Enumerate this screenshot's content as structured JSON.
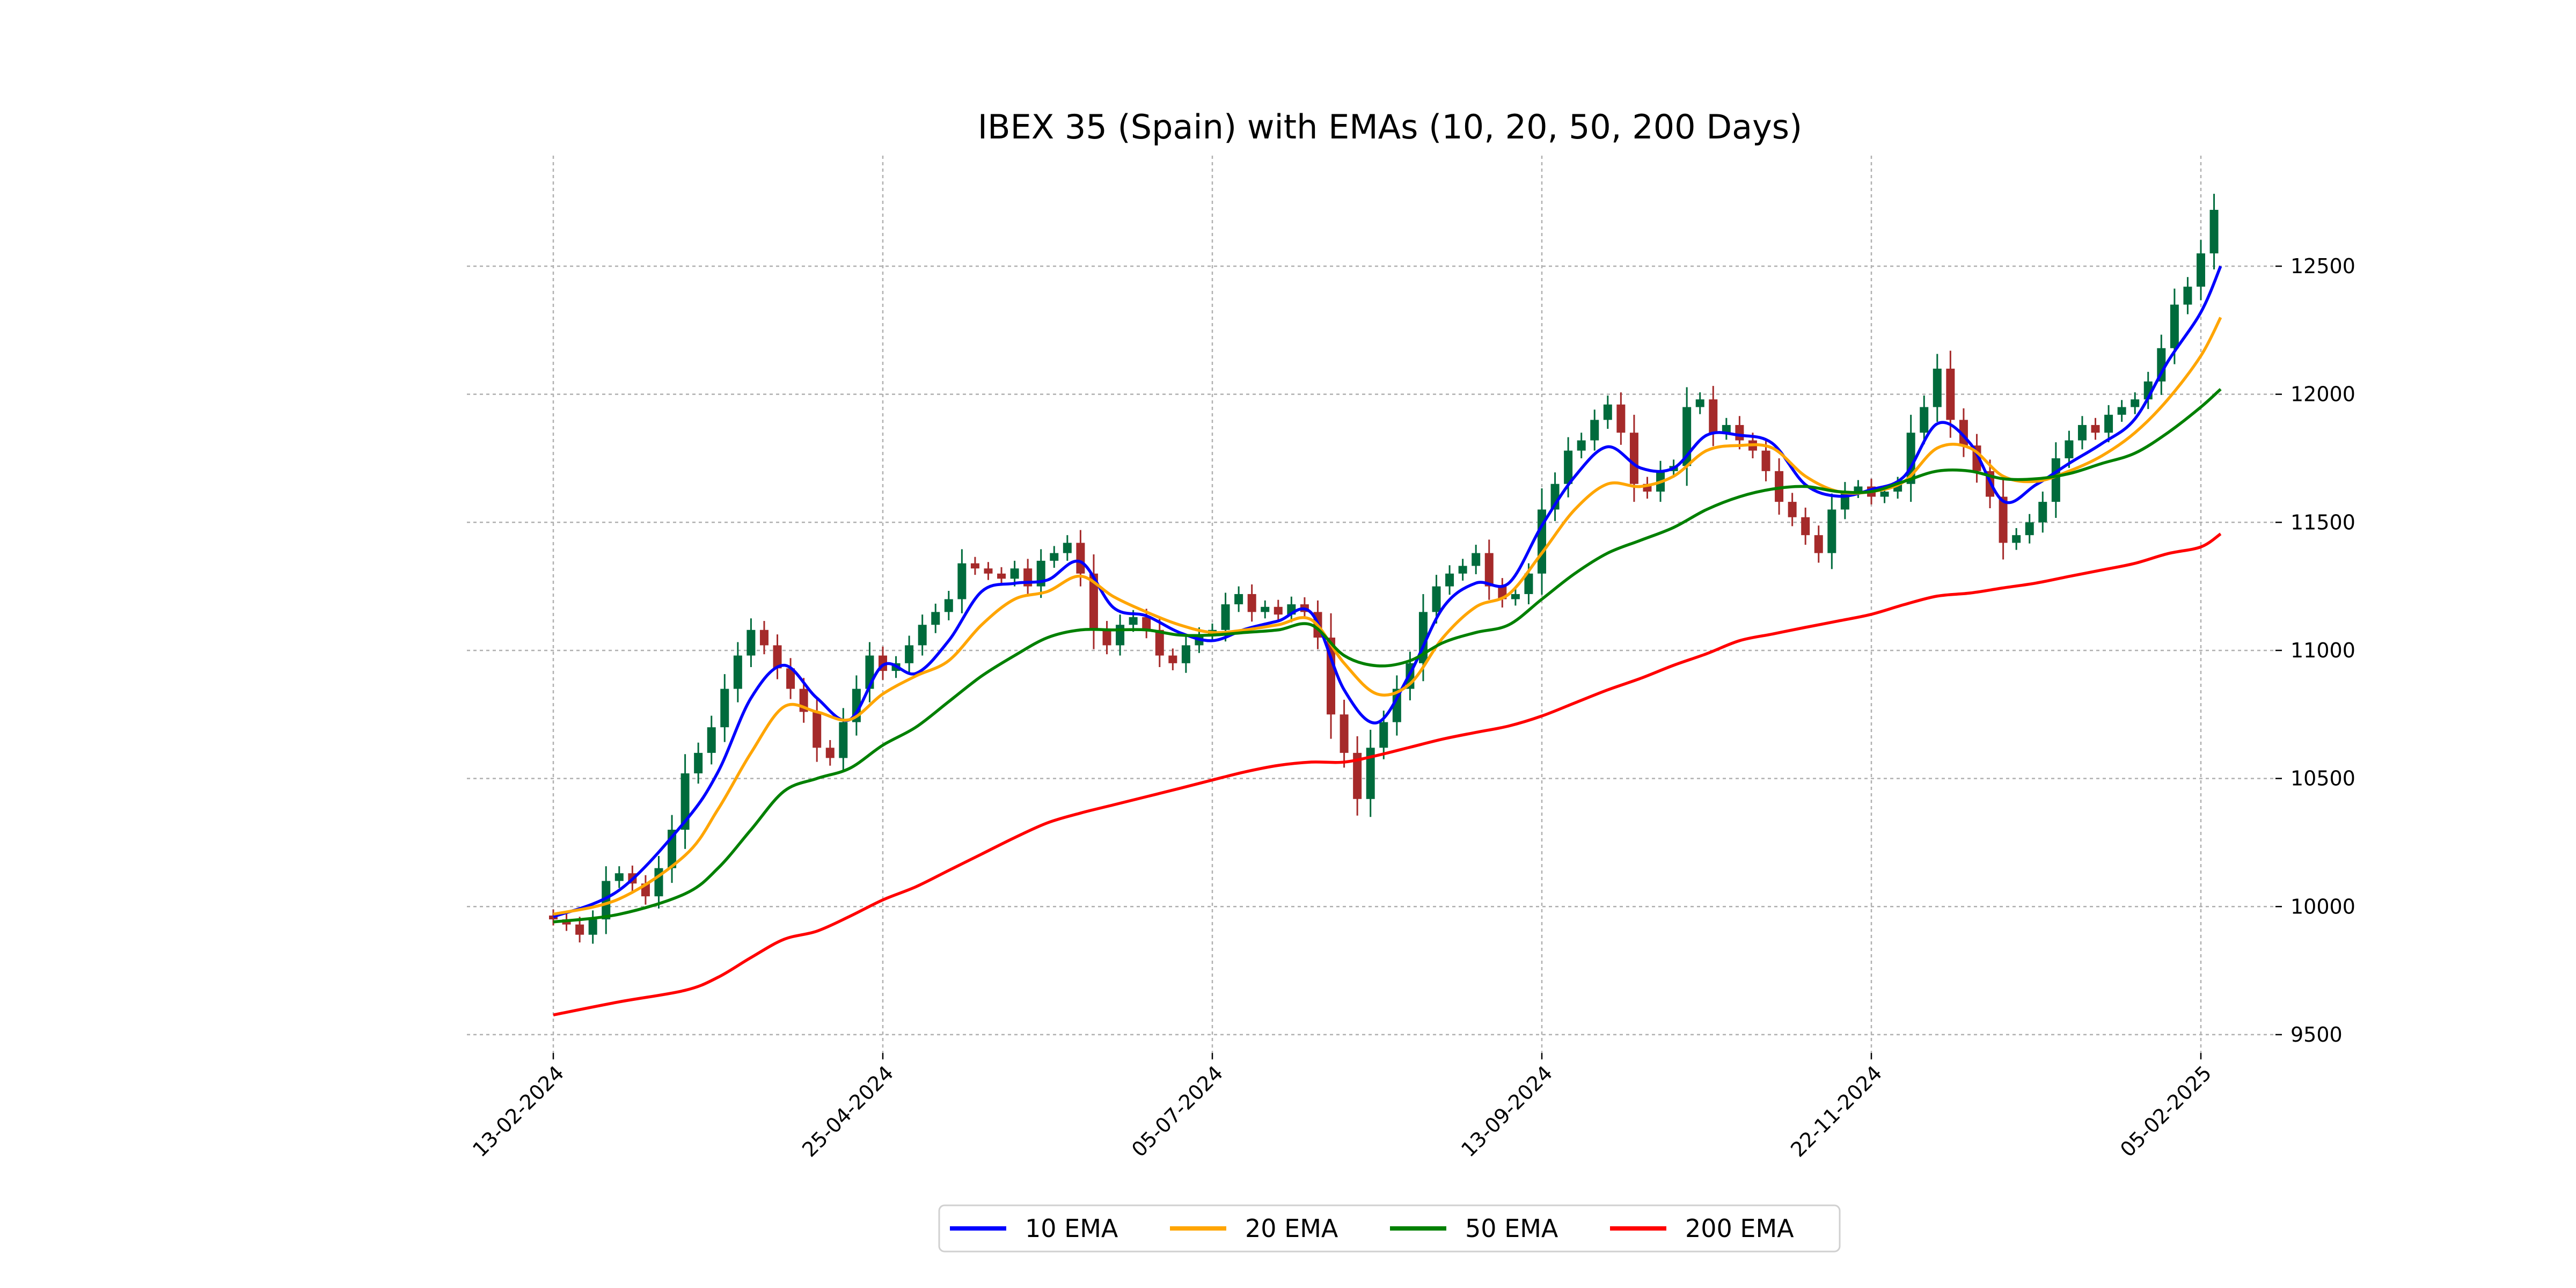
{
  "chart_data": {
    "type": "line",
    "title": "IBEX 35 (Spain) with EMAs (10, 20, 50, 200 Days)",
    "xlabel": "",
    "ylabel": "",
    "ylim": [
      9420,
      12950
    ],
    "xlim_days": [
      -4,
      263
    ],
    "grid": true,
    "legend_placement": "bottom-center",
    "y_ticks": [
      9500,
      10000,
      10500,
      11000,
      11500,
      12000,
      12500
    ],
    "x_ticks": [
      {
        "day": 0,
        "label": "13-02-2024"
      },
      {
        "day": 50,
        "label": "25-04-2024"
      },
      {
        "day": 100,
        "label": "05-07-2024"
      },
      {
        "day": 150,
        "label": "13-09-2024"
      },
      {
        "day": 200,
        "label": "22-11-2024"
      },
      {
        "day": 250,
        "label": "05-02-2025"
      }
    ],
    "candles": {
      "note_step_days": 2,
      "up_color": "#006b3c",
      "down_color": "#a52a2a",
      "close": [
        9950,
        9930,
        9890,
        9950,
        10100,
        10130,
        10090,
        10040,
        10150,
        10300,
        10520,
        10600,
        10700,
        10850,
        10980,
        11080,
        11020,
        10930,
        10850,
        10760,
        10620,
        10580,
        10720,
        10850,
        10980,
        10920,
        10950,
        11020,
        11100,
        11150,
        11200,
        11340,
        11320,
        11300,
        11280,
        11320,
        11250,
        11350,
        11380,
        11420,
        11300,
        11080,
        11020,
        11100,
        11130,
        11080,
        10980,
        10950,
        11020,
        11060,
        11080,
        11180,
        11220,
        11150,
        11170,
        11140,
        11180,
        11150,
        11050,
        10750,
        10600,
        10420,
        10620,
        10720,
        10850,
        10950,
        11150,
        11250,
        11300,
        11330,
        11380,
        11250,
        11200,
        11220,
        11300,
        11550,
        11650,
        11780,
        11820,
        11900,
        11960,
        11850,
        11650,
        11620,
        11700,
        11720,
        11950,
        11980,
        11850,
        11880,
        11820,
        11780,
        11700,
        11580,
        11520,
        11450,
        11380,
        11550,
        11620,
        11640,
        11600,
        11620,
        11650,
        11850,
        11950,
        12100,
        11900,
        11800,
        11700,
        11600,
        11420,
        11450,
        11500,
        11580,
        11750,
        11820,
        11880,
        11850,
        11920,
        11950,
        11980,
        12050,
        12180,
        12350,
        12420,
        12550,
        12720
      ]
    },
    "ema_days": [
      0,
      10,
      20,
      25,
      30,
      35,
      40,
      45,
      50,
      55,
      60,
      65,
      70,
      75,
      80,
      85,
      90,
      95,
      100,
      105,
      110,
      115,
      120,
      125,
      130,
      135,
      140,
      145,
      150,
      155,
      160,
      165,
      170,
      175,
      180,
      185,
      190,
      195,
      200,
      205,
      210,
      215,
      220,
      225,
      230,
      235,
      240,
      245,
      250,
      253
    ],
    "series": [
      {
        "name": "10 EMA",
        "color": "#0000ff",
        "values": [
          9960,
          10064,
          10333,
          10526,
          10814,
          10942,
          10814,
          10730,
          10942,
          10910,
          11038,
          11230,
          11262,
          11275,
          11346,
          11167,
          11135,
          11070,
          11038,
          11083,
          11115,
          11147,
          10846,
          10718,
          10910,
          11167,
          11263,
          11263,
          11487,
          11679,
          11795,
          11712,
          11712,
          11840,
          11840,
          11808,
          11647,
          11602,
          11628,
          11680,
          11885,
          11808,
          11583,
          11647,
          11730,
          11808,
          11904,
          12128,
          12320,
          12500
        ]
      },
      {
        "name": "20 EMA",
        "color": "#ffa500",
        "values": [
          9970,
          10030,
          10200,
          10380,
          10600,
          10780,
          10760,
          10730,
          10830,
          10900,
          10960,
          11100,
          11200,
          11230,
          11290,
          11210,
          11150,
          11100,
          11070,
          11080,
          11100,
          11120,
          10950,
          10830,
          10870,
          11050,
          11170,
          11220,
          11380,
          11550,
          11650,
          11640,
          11680,
          11780,
          11800,
          11790,
          11680,
          11620,
          11620,
          11660,
          11790,
          11790,
          11680,
          11660,
          11700,
          11760,
          11850,
          11980,
          12150,
          12300
        ]
      },
      {
        "name": "50 EMA",
        "color": "#008000",
        "values": [
          9940,
          9970,
          10050,
          10150,
          10300,
          10450,
          10500,
          10540,
          10630,
          10700,
          10800,
          10900,
          10980,
          11050,
          11080,
          11080,
          11080,
          11060,
          11060,
          11070,
          11080,
          11100,
          10980,
          10940,
          10960,
          11030,
          11070,
          11100,
          11200,
          11300,
          11380,
          11430,
          11480,
          11550,
          11600,
          11630,
          11640,
          11620,
          11620,
          11660,
          11700,
          11700,
          11670,
          11670,
          11690,
          11730,
          11770,
          11850,
          11950,
          12020
        ]
      },
      {
        "name": "200 EMA",
        "color": "#ff0000",
        "values": [
          9577,
          9628,
          9673,
          9724,
          9801,
          9872,
          9904,
          9962,
          10026,
          10077,
          10141,
          10205,
          10269,
          10327,
          10365,
          10397,
          10429,
          10461,
          10494,
          10526,
          10551,
          10564,
          10564,
          10590,
          10622,
          10654,
          10680,
          10705,
          10744,
          10795,
          10846,
          10891,
          10942,
          10987,
          11038,
          11064,
          11090,
          11115,
          11141,
          11179,
          11212,
          11224,
          11244,
          11263,
          11289,
          11314,
          11340,
          11378,
          11404,
          11455
        ]
      }
    ]
  }
}
